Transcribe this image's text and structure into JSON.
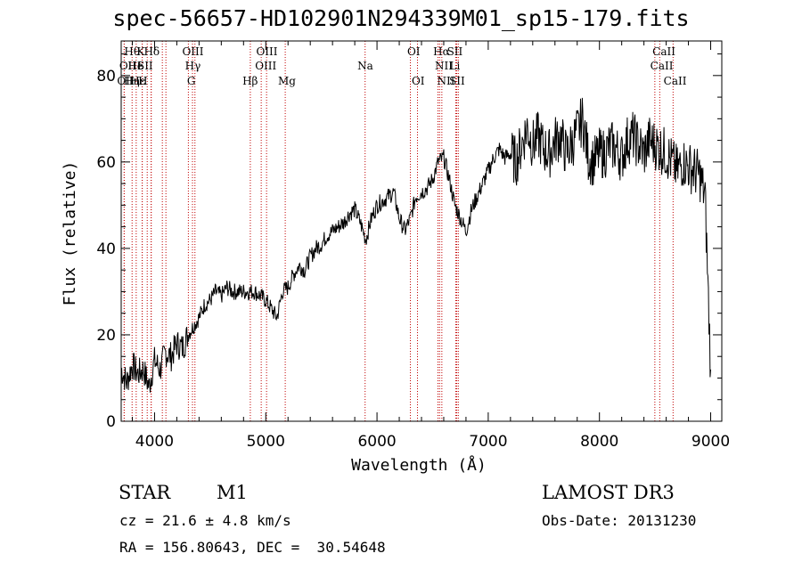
{
  "title": "spec-56657-HD102901N294339M01_sp15-179.fits",
  "info": {
    "object_class": "STAR",
    "subclass": "M1",
    "survey": "LAMOST DR3",
    "cz": "cz = 21.6 ± 4.8 km/s",
    "obs_date": "Obs-Date: 20131230",
    "coords": "RA = 156.80643, DEC =  30.54648"
  },
  "chart_data": {
    "type": "line",
    "title": "spec-56657-HD102901N294339M01_sp15-179.fits",
    "xlabel": "Wavelength (Å)",
    "ylabel": "Flux (relative)",
    "xlim": [
      3700,
      9100
    ],
    "ylim": [
      0,
      88
    ],
    "xticks": [
      4000,
      5000,
      6000,
      7000,
      8000,
      9000
    ],
    "yticks": [
      0,
      20,
      40,
      60,
      80
    ],
    "series": [
      {
        "name": "spectrum",
        "x": [
          3700,
          3750,
          3800,
          3850,
          3900,
          3950,
          4000,
          4050,
          4100,
          4150,
          4200,
          4250,
          4300,
          4350,
          4400,
          4450,
          4500,
          4550,
          4600,
          4650,
          4700,
          4750,
          4800,
          4850,
          4900,
          4950,
          5000,
          5050,
          5100,
          5150,
          5200,
          5250,
          5300,
          5350,
          5400,
          5450,
          5500,
          5550,
          5600,
          5650,
          5700,
          5750,
          5800,
          5850,
          5900,
          5950,
          6000,
          6050,
          6100,
          6150,
          6200,
          6250,
          6300,
          6350,
          6400,
          6450,
          6500,
          6550,
          6600,
          6650,
          6700,
          6750,
          6800,
          6850,
          6900,
          6950,
          7000,
          7050,
          7100,
          7150,
          7200,
          7250,
          7300,
          7350,
          7400,
          7450,
          7500,
          7550,
          7600,
          7650,
          7700,
          7750,
          7800,
          7850,
          7900,
          7950,
          8000,
          8050,
          8100,
          8150,
          8200,
          8250,
          8300,
          8350,
          8400,
          8450,
          8500,
          8550,
          8600,
          8650,
          8700,
          8750,
          8800,
          8850,
          8900,
          8950,
          9000
        ],
        "y": [
          12,
          9,
          13,
          11,
          12,
          8,
          14,
          12,
          16,
          15,
          18,
          17,
          20,
          22,
          24,
          27,
          28,
          30,
          29,
          31,
          30,
          30,
          30,
          30,
          30,
          29,
          28,
          26,
          24,
          30,
          31,
          34,
          36,
          35,
          38,
          40,
          41,
          43,
          44,
          45,
          46,
          48,
          49,
          46,
          42,
          47,
          50,
          51,
          52,
          53,
          47,
          44,
          47,
          52,
          53,
          54,
          56,
          60,
          61,
          56,
          50,
          47,
          44,
          49,
          52,
          55,
          58,
          61,
          63,
          61,
          62,
          60,
          64,
          68,
          64,
          66,
          63,
          62,
          65,
          66,
          62,
          64,
          67,
          70,
          61,
          60,
          62,
          62,
          64,
          63,
          61,
          65,
          66,
          64,
          62,
          65,
          64,
          63,
          62,
          60,
          58,
          60,
          59,
          58,
          57,
          52,
          12
        ]
      }
    ],
    "lines": [
      {
        "name": "Hθ",
        "wave": 3798,
        "row": 0,
        "lx": 3798
      },
      {
        "name": "OII",
        "wave": 3727,
        "row": 1,
        "lx": 3760
      },
      {
        "name": "OII",
        "wave": 3727,
        "row": 2,
        "lx": 3740
      },
      {
        "name": "Hη",
        "wave": 3835,
        "row": 2,
        "lx": 3795
      },
      {
        "name": "He",
        "wave": 3889,
        "row": 1,
        "lx": 3830
      },
      {
        "name": "K",
        "wave": 3934,
        "row": 0,
        "lx": 3875
      },
      {
        "name": "Hε",
        "wave": 3970,
        "row": 2,
        "lx": 3850
      },
      {
        "name": "I",
        "wave": 3889,
        "row": 1,
        "lx": 3862
      },
      {
        "name": "SII",
        "wave": 4070,
        "row": 1,
        "lx": 3915
      },
      {
        "name": "H",
        "wave": 3969,
        "row": 2,
        "lx": 3895
      },
      {
        "name": "Hδ",
        "wave": 4102,
        "row": 0,
        "lx": 3975
      },
      {
        "name": "OIII",
        "wave": 4363,
        "row": 0,
        "lx": 4345
      },
      {
        "name": "Hγ",
        "wave": 4341,
        "row": 1,
        "lx": 4345
      },
      {
        "name": "G",
        "wave": 4304,
        "row": 2,
        "lx": 4330
      },
      {
        "name": "Hβ",
        "wave": 4861,
        "row": 2,
        "lx": 4860
      },
      {
        "name": "OIII",
        "wave": 4959,
        "row": 0,
        "lx": 5010
      },
      {
        "name": "OIII",
        "wave": 5007,
        "row": 1,
        "lx": 5000
      },
      {
        "name": "Mg",
        "wave": 5175,
        "row": 2,
        "lx": 5190
      },
      {
        "name": "Na",
        "wave": 5893,
        "row": 1,
        "lx": 5895
      },
      {
        "name": "OI",
        "wave": 6300,
        "row": 0,
        "lx": 6330
      },
      {
        "name": "OI",
        "wave": 6364,
        "row": 2,
        "lx": 6370
      },
      {
        "name": "Hα",
        "wave": 6563,
        "row": 0,
        "lx": 6580
      },
      {
        "name": "SII",
        "wave": 6717,
        "row": 0,
        "lx": 6700
      },
      {
        "name": "NII",
        "wave": 6548,
        "row": 1,
        "lx": 6600
      },
      {
        "name": "Li",
        "wave": 6708,
        "row": 1,
        "lx": 6700
      },
      {
        "name": "NII",
        "wave": 6583,
        "row": 2,
        "lx": 6620
      },
      {
        "name": "SII",
        "wave": 6731,
        "row": 2,
        "lx": 6720
      },
      {
        "name": "CaII",
        "wave": 8542,
        "row": 0,
        "lx": 8580
      },
      {
        "name": "CaII",
        "wave": 8498,
        "row": 1,
        "lx": 8560
      },
      {
        "name": "CaII",
        "wave": 8662,
        "row": 2,
        "lx": 8680
      }
    ]
  }
}
